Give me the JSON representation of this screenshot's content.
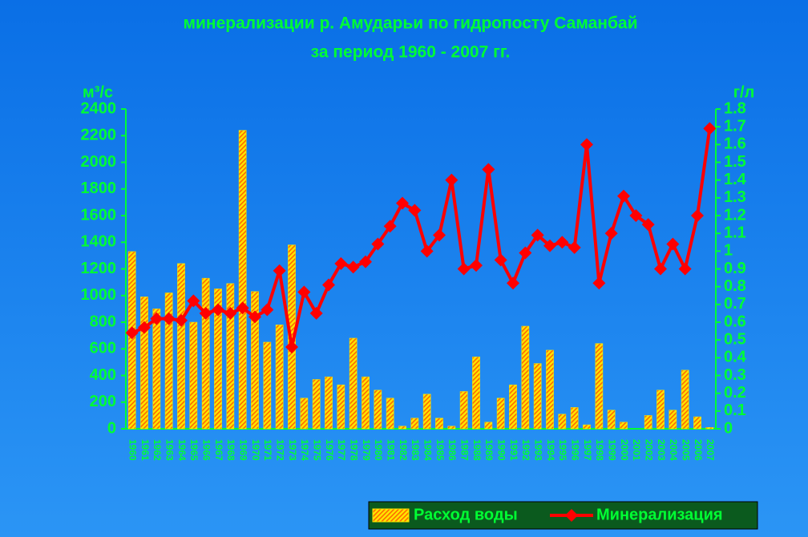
{
  "chart_data": {
    "type": "bar-line",
    "title": "минерализации р. Амударьи по гидропосту Саманбай",
    "subtitle": "за период 1960 - 2007 гг.",
    "y_label": "м³/с",
    "y2_label": "г/л",
    "categories": [
      "1960",
      "1961",
      "1962",
      "1963",
      "1964",
      "1965",
      "1966",
      "1967",
      "1968",
      "1969",
      "1970",
      "1971",
      "1972",
      "1973",
      "1974",
      "1975",
      "1976",
      "1977",
      "1978",
      "1979",
      "1980",
      "1981",
      "1982",
      "1983",
      "1984",
      "1985",
      "1986",
      "1987",
      "1988",
      "1989",
      "1990",
      "1991",
      "1992",
      "1993",
      "1994",
      "1995",
      "1996",
      "1997",
      "1998",
      "1999",
      "2000",
      "2001",
      "2002",
      "2003",
      "2004",
      "2005",
      "2006",
      "2007"
    ],
    "series": [
      {
        "name": "Расход воды",
        "type": "bar",
        "color": "#ffe600",
        "hatch_color": "#ff6a00",
        "values": [
          1330,
          990,
          900,
          1020,
          1240,
          800,
          1130,
          1050,
          1090,
          2240,
          1030,
          650,
          780,
          1380,
          230,
          370,
          390,
          330,
          680,
          390,
          290,
          230,
          20,
          80,
          260,
          80,
          20,
          280,
          540,
          50,
          230,
          330,
          770,
          490,
          590,
          110,
          160,
          30,
          640,
          140,
          50,
          0,
          100,
          290,
          140,
          440,
          90,
          10
        ]
      },
      {
        "name": "Минерализация",
        "type": "line",
        "axis": "y2",
        "color": "#ff0000",
        "values": [
          0.54,
          0.57,
          0.62,
          0.62,
          0.61,
          0.72,
          0.65,
          0.67,
          0.65,
          0.68,
          0.63,
          0.67,
          0.89,
          0.46,
          0.77,
          0.65,
          0.81,
          0.93,
          0.91,
          0.94,
          1.04,
          1.14,
          1.27,
          1.23,
          1.0,
          1.09,
          1.4,
          0.9,
          0.92,
          1.46,
          0.95,
          0.82,
          0.99,
          1.09,
          1.03,
          1.05,
          1.02,
          1.6,
          0.82,
          1.1,
          1.31,
          1.2,
          1.15,
          0.9,
          1.04,
          0.9,
          1.2,
          1.69
        ]
      }
    ],
    "ylim": [
      0,
      2400
    ],
    "yticks": [
      0,
      200,
      400,
      600,
      800,
      1000,
      1200,
      1400,
      1600,
      1800,
      2000,
      2200,
      2400
    ],
    "y2lim": [
      0,
      1.8
    ],
    "y2ticks": [
      0,
      0.1,
      0.2,
      0.3,
      0.4,
      0.5,
      0.6,
      0.7,
      0.8,
      0.9,
      1,
      1.1,
      1.2,
      1.3,
      1.4,
      1.5,
      1.6,
      1.7,
      1.8
    ],
    "legend": "bottom-right"
  }
}
